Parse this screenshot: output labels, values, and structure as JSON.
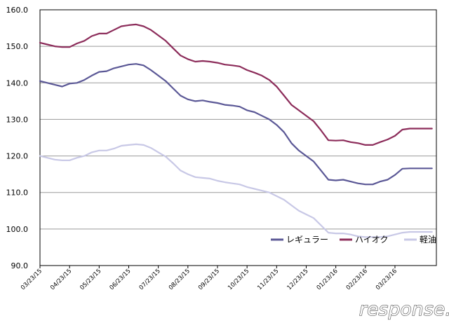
{
  "chart_data": {
    "type": "line",
    "title": "",
    "xlabel": "",
    "ylabel": "",
    "ylim": [
      90,
      160
    ],
    "y_ticks": [
      "90.0",
      "100.0",
      "110.0",
      "120.0",
      "130.0",
      "140.0",
      "150.0",
      "160.0"
    ],
    "x_ticks": [
      "03/23/15",
      "04/23/15",
      "05/23/15",
      "06/23/15",
      "07/23/15",
      "08/23/15",
      "09/23/15",
      "10/23/15",
      "11/23/15",
      "12/23/15",
      "01/23/16",
      "02/23/16",
      "03/23/16"
    ],
    "x_range": [
      0,
      13.4
    ],
    "legend_position": "bottom-right",
    "series": [
      {
        "name": "レギュラー",
        "color": "#5b5896",
        "x": [
          0,
          0.25,
          0.5,
          0.75,
          1.0,
          1.25,
          1.5,
          1.75,
          2.0,
          2.25,
          2.5,
          2.75,
          3.0,
          3.25,
          3.5,
          3.75,
          4.0,
          4.25,
          4.5,
          4.75,
          5.0,
          5.25,
          5.5,
          5.75,
          6.0,
          6.25,
          6.5,
          6.75,
          7.0,
          7.25,
          7.5,
          7.75,
          8.0,
          8.25,
          8.5,
          8.75,
          9.0,
          9.25,
          9.5,
          9.75,
          10.0,
          10.25,
          10.5,
          10.75,
          11.0,
          11.25,
          11.5,
          11.75,
          12.0,
          12.25,
          12.5,
          12.75,
          13.0,
          13.25
        ],
        "values": [
          140.5,
          140.0,
          139.5,
          139.0,
          139.8,
          140.0,
          140.8,
          142.0,
          143.0,
          143.2,
          144.0,
          144.5,
          145.0,
          145.2,
          144.8,
          143.5,
          142.0,
          140.5,
          138.5,
          136.5,
          135.5,
          135.0,
          135.2,
          134.8,
          134.5,
          134.0,
          133.8,
          133.5,
          132.5,
          132.0,
          131.0,
          130.0,
          128.5,
          126.5,
          123.5,
          121.5,
          120.0,
          118.5,
          116.0,
          113.5,
          113.3,
          113.5,
          113.0,
          112.5,
          112.2,
          112.2,
          113.0,
          113.5,
          114.8,
          116.5,
          116.6,
          116.6,
          116.6,
          116.6
        ]
      },
      {
        "name": "ハイオク",
        "color": "#8c2c5a",
        "x": [
          0,
          0.25,
          0.5,
          0.75,
          1.0,
          1.25,
          1.5,
          1.75,
          2.0,
          2.25,
          2.5,
          2.75,
          3.0,
          3.25,
          3.5,
          3.75,
          4.0,
          4.25,
          4.5,
          4.75,
          5.0,
          5.25,
          5.5,
          5.75,
          6.0,
          6.25,
          6.5,
          6.75,
          7.0,
          7.25,
          7.5,
          7.75,
          8.0,
          8.25,
          8.5,
          8.75,
          9.0,
          9.25,
          9.5,
          9.75,
          10.0,
          10.25,
          10.5,
          10.75,
          11.0,
          11.25,
          11.5,
          11.75,
          12.0,
          12.25,
          12.5,
          12.75,
          13.0,
          13.25
        ],
        "values": [
          151.0,
          150.5,
          150.0,
          149.8,
          149.8,
          150.8,
          151.5,
          152.8,
          153.5,
          153.5,
          154.5,
          155.5,
          155.8,
          156.0,
          155.5,
          154.5,
          153.0,
          151.5,
          149.5,
          147.5,
          146.5,
          145.8,
          146.0,
          145.8,
          145.5,
          145.0,
          144.8,
          144.5,
          143.5,
          142.8,
          142.0,
          140.8,
          139.0,
          136.5,
          134.0,
          132.5,
          131.0,
          129.5,
          127.0,
          124.3,
          124.2,
          124.3,
          123.8,
          123.5,
          123.0,
          123.0,
          123.8,
          124.5,
          125.5,
          127.2,
          127.5,
          127.5,
          127.5,
          127.5
        ]
      },
      {
        "name": "軽油",
        "color": "#c8c8e6",
        "x": [
          0,
          0.25,
          0.5,
          0.75,
          1.0,
          1.25,
          1.5,
          1.75,
          2.0,
          2.25,
          2.5,
          2.75,
          3.0,
          3.25,
          3.5,
          3.75,
          4.0,
          4.25,
          4.5,
          4.75,
          5.0,
          5.25,
          5.5,
          5.75,
          6.0,
          6.25,
          6.5,
          6.75,
          7.0,
          7.25,
          7.5,
          7.75,
          8.0,
          8.25,
          8.5,
          8.75,
          9.0,
          9.25,
          9.5,
          9.75,
          10.0,
          10.25,
          10.5,
          10.75,
          11.0,
          11.25,
          11.5,
          11.75,
          12.0,
          12.25,
          12.5,
          12.75,
          13.0,
          13.25
        ],
        "values": [
          120.0,
          119.5,
          119.0,
          118.8,
          118.8,
          119.5,
          120.0,
          121.0,
          121.5,
          121.5,
          122.0,
          122.8,
          123.0,
          123.2,
          123.0,
          122.2,
          121.0,
          119.8,
          118.0,
          116.0,
          115.0,
          114.2,
          114.0,
          113.8,
          113.2,
          112.8,
          112.5,
          112.2,
          111.5,
          111.0,
          110.5,
          110.0,
          109.0,
          108.0,
          106.5,
          105.0,
          104.0,
          103.0,
          101.0,
          99.0,
          98.8,
          98.8,
          98.5,
          98.0,
          97.8,
          97.8,
          97.8,
          98.0,
          98.5,
          99.0,
          99.2,
          99.2,
          99.2,
          99.2
        ]
      }
    ]
  },
  "watermark": {
    "text": "response."
  }
}
